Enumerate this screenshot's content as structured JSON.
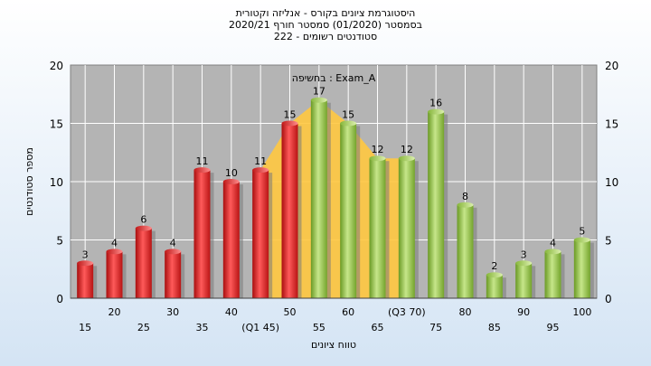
{
  "title_lines": [
    "היסטוגרמת ציונים בקורס - אנליזה וקטורית",
    "בסמסטר  (01/2020)  סמסטר חורף 2020/21",
    "סטודנטים רשומים - 222"
  ],
  "colors": {
    "fail": "#e52222",
    "pass": "#8fbf3f",
    "area": "#ffc840",
    "plot_bg": "#b4b4b4",
    "grid": "#ffffff"
  },
  "chart_data": {
    "type": "bar",
    "annotation": "בחשיפה : Exam_A",
    "xlabel": "טווח ציונים",
    "ylabel": "מספר סטודנטים",
    "ylim": [
      0,
      20
    ],
    "yticks": [
      0,
      5,
      10,
      15,
      20
    ],
    "grid": true,
    "categories": [
      "15",
      "20",
      "25",
      "30",
      "35",
      "40",
      "45",
      "50",
      "55",
      "60",
      "65",
      "70",
      "75",
      "80",
      "85",
      "90",
      "95",
      "100"
    ],
    "x_tick_labels": [
      "15",
      "20",
      "25",
      "30",
      "35",
      "40",
      "(Q1 45)",
      "50",
      "55",
      "60",
      "65",
      "(Q3 70)",
      "75",
      "80",
      "85",
      "90",
      "95",
      "100"
    ],
    "values": [
      3,
      4,
      6,
      4,
      11,
      10,
      11,
      15,
      17,
      15,
      12,
      12,
      16,
      8,
      2,
      3,
      4,
      5
    ],
    "bar_groups": [
      "fail",
      "fail",
      "fail",
      "fail",
      "fail",
      "fail",
      "fail",
      "fail",
      "pass",
      "pass",
      "pass",
      "pass",
      "pass",
      "pass",
      "pass",
      "pass",
      "pass",
      "pass"
    ],
    "iqr_area": [
      {
        "x": "45",
        "y": 11
      },
      {
        "x": "50",
        "y": 15
      },
      {
        "x": "55",
        "y": 17
      },
      {
        "x": "60",
        "y": 15
      },
      {
        "x": "65",
        "y": 12
      },
      {
        "x": "70",
        "y": 12
      }
    ]
  }
}
